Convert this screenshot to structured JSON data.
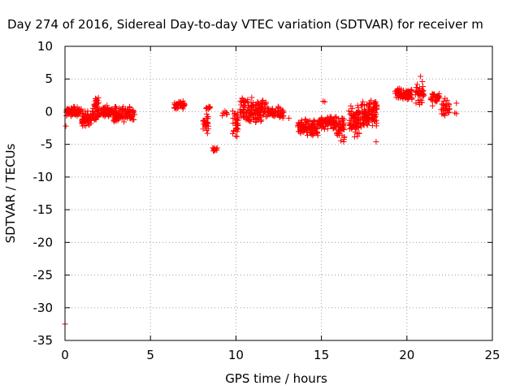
{
  "chart_data": {
    "type": "scatter",
    "title": "Day 274 of 2016, Sidereal Day-to-day VTEC variation (SDTVAR) for receiver m",
    "xlabel": "GPS time / hours",
    "ylabel": "SDTVAR / TECUs",
    "xlim": [
      0,
      25
    ],
    "ylim": [
      -35,
      10
    ],
    "xticks": [
      0,
      5,
      10,
      15,
      20,
      25
    ],
    "yticks": [
      10,
      5,
      0,
      -5,
      -10,
      -15,
      -20,
      -25,
      -30,
      -35
    ],
    "grid": true,
    "marker": "plus",
    "color": "#ff0000",
    "series": [
      {
        "name": "SDTVAR",
        "clusters": [
          {
            "x0": 0.05,
            "x1": 0.95,
            "y0": -0.8,
            "y1": 0.8,
            "n": 90
          },
          {
            "x0": 0.95,
            "x1": 1.55,
            "y0": -2.6,
            "y1": 0.5,
            "n": 55
          },
          {
            "x0": 1.6,
            "x1": 2.0,
            "y0": -1.5,
            "y1": 2.4,
            "n": 45
          },
          {
            "x0": 2.0,
            "x1": 2.8,
            "y0": -1.0,
            "y1": 1.0,
            "n": 70
          },
          {
            "x0": 2.8,
            "x1": 4.1,
            "y0": -1.8,
            "y1": 1.0,
            "n": 110
          },
          {
            "x0": 6.4,
            "x1": 7.0,
            "y0": 0.3,
            "y1": 1.7,
            "n": 55
          },
          {
            "x0": 8.05,
            "x1": 8.4,
            "y0": -3.5,
            "y1": -0.3,
            "n": 28
          },
          {
            "x0": 8.15,
            "x1": 8.55,
            "y0": 0.2,
            "y1": 1.0,
            "n": 8
          },
          {
            "x0": 8.6,
            "x1": 8.9,
            "y0": -6.3,
            "y1": -5.0,
            "n": 12
          },
          {
            "x0": 9.2,
            "x1": 9.5,
            "y0": -0.7,
            "y1": 0.2,
            "n": 8
          },
          {
            "x0": 9.8,
            "x1": 10.2,
            "y0": -4.6,
            "y1": 1.3,
            "n": 35
          },
          {
            "x0": 10.2,
            "x1": 11.8,
            "y0": -2.0,
            "y1": 2.3,
            "n": 150
          },
          {
            "x0": 11.8,
            "x1": 12.8,
            "y0": -1.2,
            "y1": 1.0,
            "n": 60
          },
          {
            "x0": 13.6,
            "x1": 14.8,
            "y0": -3.8,
            "y1": -1.0,
            "n": 110
          },
          {
            "x0": 14.8,
            "x1": 15.9,
            "y0": -2.8,
            "y1": -0.5,
            "n": 90
          },
          {
            "x0": 15.9,
            "x1": 16.4,
            "y0": -4.6,
            "y1": -0.6,
            "n": 45
          },
          {
            "x0": 16.6,
            "x1": 17.3,
            "y0": -5.0,
            "y1": 1.2,
            "n": 80
          },
          {
            "x0": 17.3,
            "x1": 18.25,
            "y0": -2.5,
            "y1": 1.9,
            "n": 110
          },
          {
            "x0": 19.3,
            "x1": 20.3,
            "y0": 1.5,
            "y1": 3.8,
            "n": 85
          },
          {
            "x0": 20.5,
            "x1": 21.0,
            "y0": 1.0,
            "y1": 4.3,
            "n": 40
          },
          {
            "x0": 21.4,
            "x1": 21.9,
            "y0": 1.4,
            "y1": 3.0,
            "n": 32
          },
          {
            "x0": 22.0,
            "x1": 22.5,
            "y0": -0.8,
            "y1": 2.2,
            "n": 32
          }
        ],
        "points": [
          {
            "x": 0.0,
            "y": -32.5
          },
          {
            "x": 0.05,
            "y": -2.2
          },
          {
            "x": 15.1,
            "y": 1.6
          },
          {
            "x": 15.2,
            "y": 1.5
          },
          {
            "x": 16.3,
            "y": -4.6
          },
          {
            "x": 18.2,
            "y": -4.6
          },
          {
            "x": 20.8,
            "y": 5.4
          },
          {
            "x": 20.9,
            "y": 4.6
          },
          {
            "x": 21.5,
            "y": 0.9
          },
          {
            "x": 22.9,
            "y": 1.3
          },
          {
            "x": 22.9,
            "y": -0.3
          },
          {
            "x": 22.8,
            "y": -0.2
          },
          {
            "x": 12.5,
            "y": 0.5
          },
          {
            "x": 13.1,
            "y": -1.0
          }
        ]
      }
    ]
  }
}
